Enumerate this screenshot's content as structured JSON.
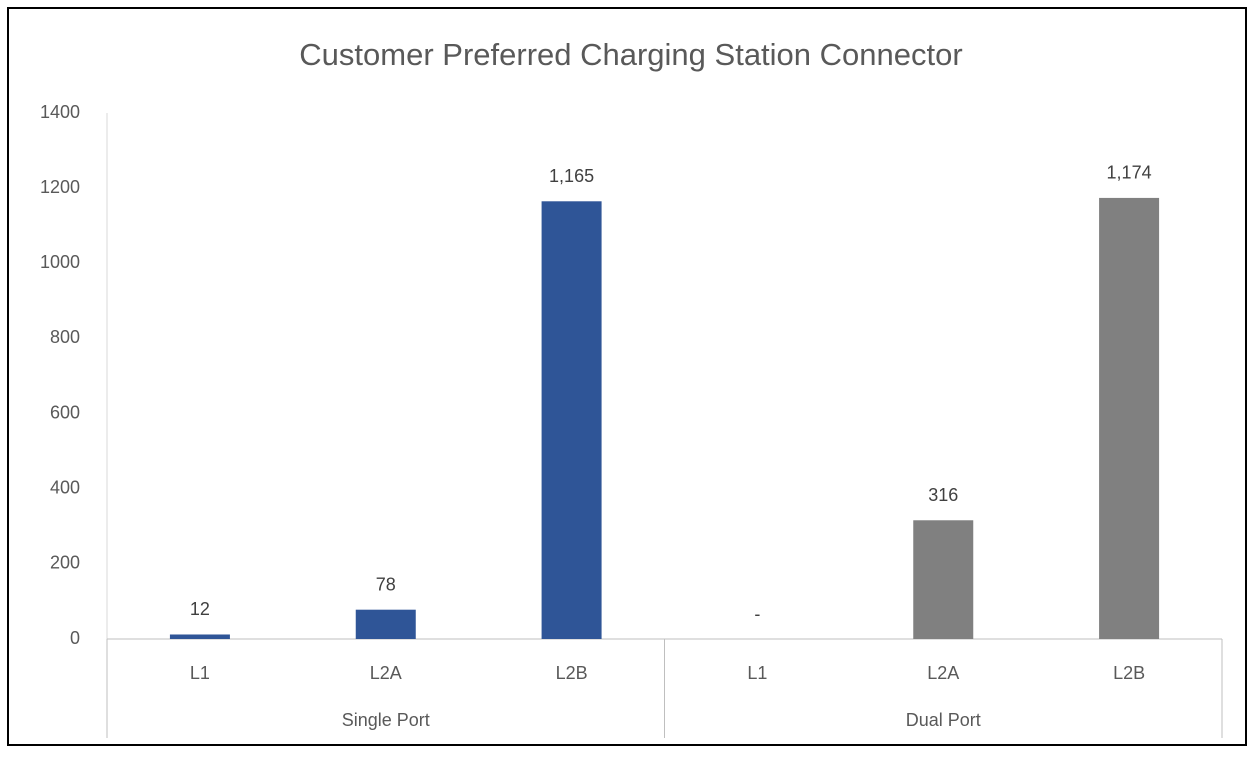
{
  "chart_data": {
    "type": "bar",
    "title": "Customer Preferred Charging Station Connector",
    "groups": [
      {
        "name": "Single Port",
        "color": "#2f5597",
        "categories": [
          "L1",
          "L2A",
          "L2B"
        ],
        "values": [
          12,
          78,
          1165
        ],
        "value_labels": [
          "12",
          "78",
          "1,165"
        ]
      },
      {
        "name": "Dual Port",
        "color": "#808080",
        "categories": [
          "L1",
          "L2A",
          "L2B"
        ],
        "values": [
          0,
          316,
          1174
        ],
        "value_labels": [
          "-",
          "316",
          "1,174"
        ]
      }
    ],
    "ylim": [
      0,
      1400
    ],
    "yticks": [
      0,
      200,
      400,
      600,
      800,
      1000,
      1200,
      1400
    ],
    "grid": false
  }
}
